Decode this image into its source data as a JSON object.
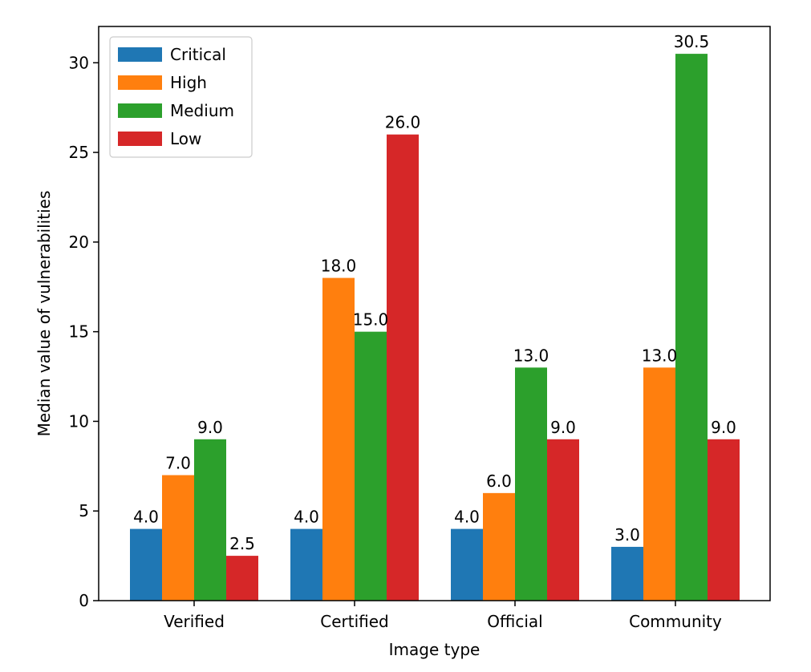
{
  "chart_data": {
    "type": "bar",
    "title": "",
    "xlabel": "Image type",
    "ylabel": "Median value of vulnerabilities",
    "categories": [
      "Verified",
      "Certified",
      "Official",
      "Community"
    ],
    "series": [
      {
        "name": "Critical",
        "color": "#1f77b4",
        "values": [
          4.0,
          4.0,
          4.0,
          3.0
        ],
        "labels": [
          "4.0",
          "4.0",
          "4.0",
          "3.0"
        ]
      },
      {
        "name": "High",
        "color": "#ff7f0e",
        "values": [
          7.0,
          18.0,
          6.0,
          13.0
        ],
        "labels": [
          "7.0",
          "18.0",
          "6.0",
          "13.0"
        ]
      },
      {
        "name": "Medium",
        "color": "#2ca02c",
        "values": [
          9.0,
          15.0,
          13.0,
          30.5
        ],
        "labels": [
          "9.0",
          "15.0",
          "13.0",
          "30.5"
        ]
      },
      {
        "name": "Low",
        "color": "#d62728",
        "values": [
          2.5,
          26.0,
          9.0,
          9.0
        ],
        "labels": [
          "2.5",
          "26.0",
          "9.0",
          "9.0"
        ]
      }
    ],
    "yticks": [
      "0",
      "5",
      "10",
      "15",
      "20",
      "25",
      "30"
    ],
    "ylim": [
      0,
      32.025
    ],
    "grid": false,
    "legend_position": "top-left"
  }
}
